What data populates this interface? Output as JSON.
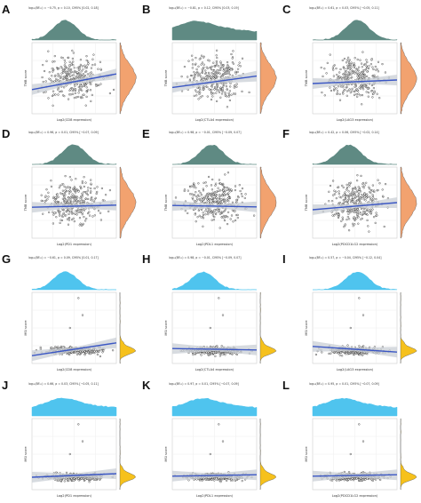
{
  "figure": {
    "colors": {
      "tmb_density": "#5f8a83",
      "tmb_side": "#f2a26f",
      "msi_density": "#4fc4ee",
      "msi_side": "#f6c11c",
      "fit_line": "#3b57c4",
      "ci_band": "#c9cfd6",
      "points": "#3a3a3a"
    },
    "panels": [
      {
        "letter": "A",
        "stat": "log₁₀(BF₀₁) = −0.75, ρ = 0.10, CI95% [0.02, 0.18]",
        "ylabel": "TMB score",
        "xlabel": "Log2(CD8 expression)",
        "top_color": "tmb",
        "slope": 0.22,
        "outlier": false
      },
      {
        "letter": "B",
        "stat": "log₁₀(BF₀₁) = −0.81, ρ = 0.12, CI95% [0.03, 0.19]",
        "ylabel": "TMB score",
        "xlabel": "Log2(CTLA4 expression)",
        "top_color": "tmb",
        "slope": 0.16,
        "outlier": false
      },
      {
        "letter": "C",
        "stat": "log₁₀(BF₀₁) = 0.61, ρ = 0.03, CI95% [−0.05, 0.11]",
        "ylabel": "TMB score",
        "xlabel": "Log2(LAG3 expression)",
        "top_color": "tmb",
        "slope": 0.05,
        "outlier": false
      },
      {
        "letter": "D",
        "stat": "log₁₀(BF₀₁) = 0.96, ρ = 0.01, CI95% [−0.07, 0.09]",
        "ylabel": "TMB score",
        "xlabel": "Log2(PD1 expression)",
        "top_color": "tmb",
        "slope": 0.03,
        "outlier": false
      },
      {
        "letter": "E",
        "stat": "log₁₀(BF₀₁) = 0.98, ρ = −0.01, CI95% [−0.09, 0.07]",
        "ylabel": "TMB score",
        "xlabel": "Log2(PDL1 expression)",
        "top_color": "tmb",
        "slope": -0.02,
        "outlier": false
      },
      {
        "letter": "F",
        "stat": "log₁₀(BF₀₁) = 0.42, ρ = 0.06, CI95% [−0.02, 0.14]",
        "ylabel": "TMB score",
        "xlabel": "Log2(PDCD1LG2 expression)",
        "top_color": "tmb",
        "slope": 0.1,
        "outlier": false
      },
      {
        "letter": "G",
        "stat": "log₁₀(BF₀₁) = −0.61, ρ = 0.09, CI95% [0.01, 0.17]",
        "ylabel": "MSI score",
        "xlabel": "Log2(CD8 expression)",
        "top_color": "msi",
        "slope": 0.18,
        "outlier": true
      },
      {
        "letter": "H",
        "stat": "log₁₀(BF₀₁) = 0.98, ρ = −0.01, CI95% [−0.09, 0.07]",
        "ylabel": "MSI score",
        "xlabel": "Log2(CTLA4 expression)",
        "top_color": "msi",
        "slope": -0.02,
        "outlier": true
      },
      {
        "letter": "I",
        "stat": "log₁₀(BF₀₁) = 0.57, ρ = −0.04, CI95% [−0.12, 0.04]",
        "ylabel": "MSI score",
        "xlabel": "Log2(LAG3 expression)",
        "top_color": "msi",
        "slope": -0.08,
        "outlier": true
      },
      {
        "letter": "J",
        "stat": "log₁₀(BF₀₁) = 0.66, ρ = 0.03, CI95% [−0.05, 0.11]",
        "ylabel": "MSI score",
        "xlabel": "Log2(PD1 expression)",
        "top_color": "msi",
        "slope": 0.05,
        "outlier": true
      },
      {
        "letter": "K",
        "stat": "log₁₀(BF₀₁) = 0.97, ρ = 0.01, CI95% [−0.07, 0.09]",
        "ylabel": "MSI score",
        "xlabel": "Log2(PDL1 expression)",
        "top_color": "msi",
        "slope": 0.02,
        "outlier": true
      },
      {
        "letter": "L",
        "stat": "log₁₀(BF₀₁) = 0.95, ρ = 0.01, CI95% [−0.07, 0.09]",
        "ylabel": "MSI score",
        "xlabel": "Log2(PDCD1LG2 expression)",
        "top_color": "msi",
        "slope": 0.02,
        "outlier": true
      }
    ]
  },
  "chart_data": [
    {
      "type": "scatter",
      "panel": "A",
      "title": "",
      "xlabel": "Log2(CD8 expression)",
      "ylabel": "TMB score",
      "fit": "linear",
      "trend_slope": 0.22
    },
    {
      "type": "scatter",
      "panel": "B",
      "title": "",
      "xlabel": "Log2(CTLA4 expression)",
      "ylabel": "TMB score",
      "fit": "linear",
      "trend_slope": 0.16
    },
    {
      "type": "scatter",
      "panel": "C",
      "title": "",
      "xlabel": "Log2(LAG3 expression)",
      "ylabel": "TMB score",
      "fit": "linear",
      "trend_slope": 0.05
    },
    {
      "type": "scatter",
      "panel": "D",
      "title": "",
      "xlabel": "Log2(PD1 expression)",
      "ylabel": "TMB score",
      "fit": "linear",
      "trend_slope": 0.03
    },
    {
      "type": "scatter",
      "panel": "E",
      "title": "",
      "xlabel": "Log2(PDL1 expression)",
      "ylabel": "TMB score",
      "fit": "linear",
      "trend_slope": -0.02
    },
    {
      "type": "scatter",
      "panel": "F",
      "title": "",
      "xlabel": "Log2(PDCD1LG2 expression)",
      "ylabel": "TMB score",
      "fit": "linear",
      "trend_slope": 0.1
    },
    {
      "type": "scatter",
      "panel": "G",
      "title": "",
      "xlabel": "Log2(CD8 expression)",
      "ylabel": "MSI score",
      "fit": "linear",
      "trend_slope": 0.18
    },
    {
      "type": "scatter",
      "panel": "H",
      "title": "",
      "xlabel": "Log2(CTLA4 expression)",
      "ylabel": "MSI score",
      "fit": "linear",
      "trend_slope": -0.02
    },
    {
      "type": "scatter",
      "panel": "I",
      "title": "",
      "xlabel": "Log2(LAG3 expression)",
      "ylabel": "MSI score",
      "fit": "linear",
      "trend_slope": -0.08
    },
    {
      "type": "scatter",
      "panel": "J",
      "title": "",
      "xlabel": "Log2(PD1 expression)",
      "ylabel": "MSI score",
      "fit": "linear",
      "trend_slope": 0.05
    },
    {
      "type": "scatter",
      "panel": "K",
      "title": "",
      "xlabel": "Log2(PDL1 expression)",
      "ylabel": "MSI score",
      "fit": "linear",
      "trend_slope": 0.02
    },
    {
      "type": "scatter",
      "panel": "L",
      "title": "",
      "xlabel": "Log2(PDCD1LG2 expression)",
      "ylabel": "MSI score",
      "fit": "linear",
      "trend_slope": 0.02
    }
  ]
}
